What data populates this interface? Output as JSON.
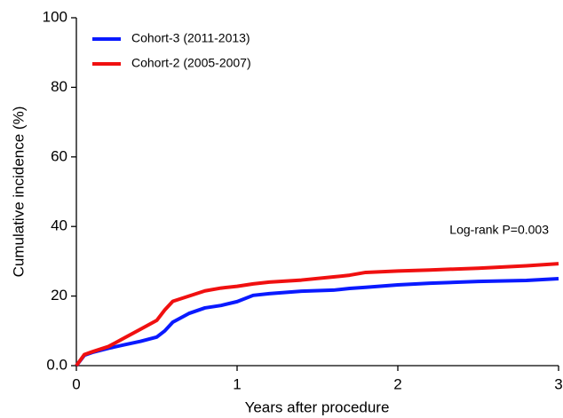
{
  "chart_data": {
    "type": "line",
    "y_label": "Cumulative incidence (%)",
    "x_label": "Years after procedure",
    "annotation": "Log-rank P=0.003",
    "legend": "upper left",
    "xlim": [
      0,
      3
    ],
    "xticks": [
      0,
      1,
      2,
      3
    ],
    "ylim": [
      0,
      100
    ],
    "yticks": [
      {
        "value": 0,
        "label": "0.0"
      },
      20,
      40,
      60,
      80,
      100
    ],
    "x": [
      0,
      0.05,
      0.1,
      0.2,
      0.3,
      0.4,
      0.5,
      0.55,
      0.6,
      0.7,
      0.8,
      0.9,
      1.0,
      1.1,
      1.2,
      1.4,
      1.6,
      1.7,
      1.8,
      2.0,
      2.2,
      2.5,
      2.8,
      3.0
    ],
    "series": [
      {
        "name": "Cohort-3 (2011-2013)",
        "color": "#0a1aff",
        "values": [
          0,
          3,
          3.8,
          5,
          6,
          7,
          8.2,
          10,
          12.5,
          15,
          16.6,
          17.3,
          18.4,
          20.2,
          20.7,
          21.4,
          21.7,
          22.2,
          22.5,
          23.2,
          23.7,
          24.2,
          24.5,
          25
        ]
      },
      {
        "name": "Cohort-2 (2005-2007)",
        "color": "#f01010",
        "values": [
          0,
          3.2,
          4,
          5.5,
          8,
          10.5,
          13,
          16,
          18.5,
          20,
          21.5,
          22.3,
          22.8,
          23.5,
          24,
          24.6,
          25.5,
          26,
          26.8,
          27.2,
          27.5,
          28,
          28.7,
          29.3
        ]
      }
    ]
  }
}
